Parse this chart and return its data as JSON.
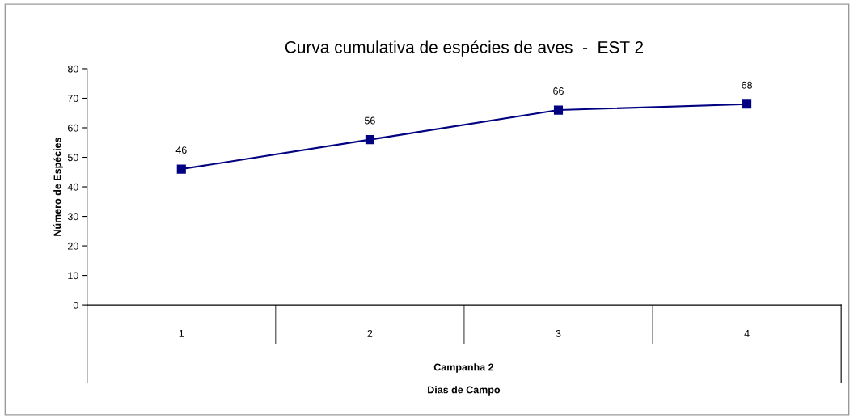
{
  "chart_data": {
    "type": "line",
    "title": "Curva cumulativa de espécies de aves  -  EST 2",
    "xlabel": "Dias de Campo",
    "ylabel": "Número de Espécies",
    "annotations": [
      "Campanha 2"
    ],
    "categories": [
      "1",
      "2",
      "3",
      "4"
    ],
    "series": [
      {
        "color": "#000080",
        "values": [
          46,
          56,
          66,
          68
        ]
      }
    ],
    "ylim": [
      0,
      80
    ],
    "yticks": [
      0,
      10,
      20,
      30,
      40,
      50,
      60,
      70,
      80
    ],
    "data_labels": true,
    "marker": "square",
    "line_style": "solid",
    "grid": false,
    "legend": false
  }
}
